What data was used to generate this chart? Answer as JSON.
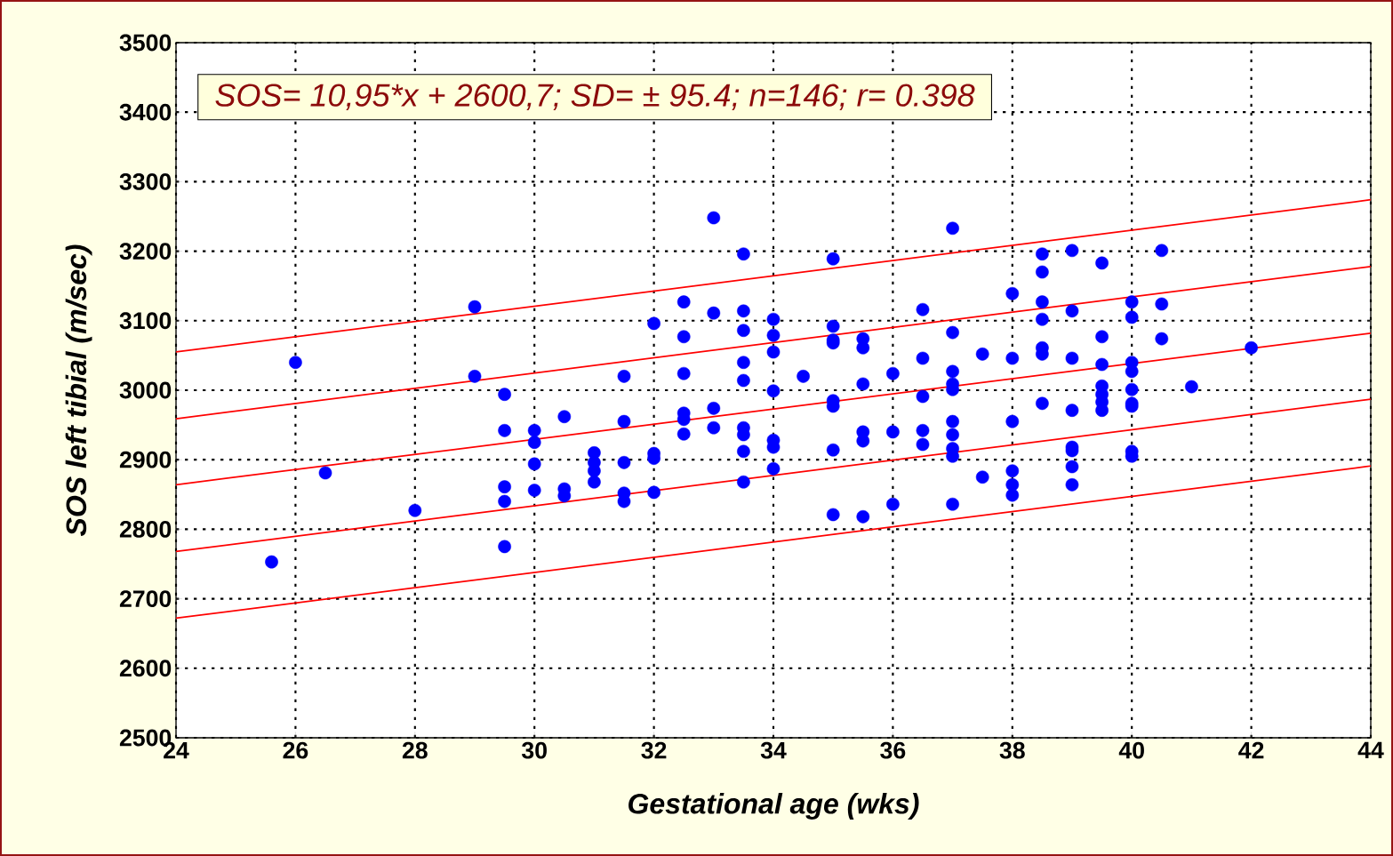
{
  "chart_data": {
    "type": "scatter",
    "xlabel": "Gestational age (wks)",
    "ylabel": "SOS left tibial (m/sec)",
    "annotations": [
      "SOS= 10,95*x + 2600,7; SD= ± 95.4; n=146; r= 0.398"
    ],
    "xlim": [
      24,
      44
    ],
    "ylim": [
      2500,
      3500
    ],
    "xticks": [
      24,
      26,
      28,
      30,
      32,
      34,
      36,
      38,
      40,
      42,
      44
    ],
    "yticks": [
      2500,
      2600,
      2700,
      2800,
      2900,
      3000,
      3100,
      3200,
      3300,
      3400,
      3500
    ],
    "grid": true,
    "series": [
      {
        "color": "#0000ff",
        "x": [
          25.6,
          26,
          26.5,
          28,
          29,
          29,
          29.5,
          29.5,
          29.5,
          29.5,
          29.5,
          30,
          30,
          30,
          30,
          30.5,
          30.5,
          30.5,
          31,
          31,
          31,
          31,
          31.5,
          31.5,
          31.5,
          31.5,
          31.5,
          32,
          32,
          32,
          32,
          32.5,
          32.5,
          32.5,
          32.5,
          32.5,
          32.5,
          33,
          33,
          33,
          33,
          33.5,
          33.5,
          33.5,
          33.5,
          33.5,
          33.5,
          33.5,
          33.5,
          33.5,
          34,
          34,
          34,
          34,
          34,
          34,
          34,
          34.5,
          35,
          35,
          35,
          35,
          35,
          35,
          35,
          35,
          35.5,
          35.5,
          35.5,
          35.5,
          35.5,
          35.5,
          36,
          36,
          36,
          36.5,
          36.5,
          36.5,
          36.5,
          36.5,
          37,
          37,
          37,
          37,
          37,
          37,
          37,
          37,
          37,
          37,
          37.5,
          37.5,
          38,
          38,
          38,
          38,
          38,
          38,
          38.5,
          38.5,
          38.5,
          38.5,
          38.5,
          38.5,
          38.5,
          39,
          39,
          39,
          39,
          39,
          39,
          39,
          39,
          39.5,
          39.5,
          39.5,
          39.5,
          39.5,
          39.5,
          39.5,
          40,
          40,
          40,
          40,
          40,
          40,
          40,
          40,
          40,
          40.5,
          40.5,
          40.5,
          41,
          42
        ],
        "values": [
          2753,
          3040,
          2881,
          2827,
          3120,
          3020,
          2994,
          2942,
          2861,
          2840,
          2775,
          2942,
          2925,
          2894,
          2856,
          2962,
          2858,
          2848,
          2910,
          2896,
          2884,
          2868,
          3020,
          2955,
          2896,
          2852,
          2840,
          3096,
          2909,
          2902,
          2853,
          3127,
          3077,
          3024,
          2967,
          2958,
          2937,
          3248,
          3111,
          2974,
          2946,
          3196,
          3114,
          3086,
          3040,
          3014,
          2946,
          2936,
          2912,
          2868,
          3102,
          3079,
          3055,
          2999,
          2928,
          2918,
          2887,
          3020,
          3189,
          3092,
          3072,
          3068,
          2985,
          2977,
          2914,
          2821,
          3074,
          3061,
          3009,
          2940,
          2927,
          2818,
          3024,
          2940,
          2836,
          3116,
          3046,
          2991,
          2942,
          2922,
          3233,
          3083,
          3027,
          3009,
          3001,
          2955,
          2936,
          2916,
          2905,
          2836,
          3052,
          2875,
          3139,
          3046,
          2955,
          2884,
          2864,
          2849,
          3196,
          3170,
          3127,
          3102,
          3061,
          3052,
          2981,
          3201,
          3114,
          3046,
          2971,
          2918,
          2913,
          2890,
          2864,
          3183,
          3077,
          3037,
          3006,
          2994,
          2983,
          2971,
          3127,
          3105,
          3040,
          3027,
          3001,
          2981,
          2977,
          2912,
          2905,
          3201,
          3124,
          3074,
          3005,
          3061
        ]
      },
      {
        "type": "line",
        "color": "#ff0000",
        "x": [
          24,
          44
        ],
        "values": [
          2864,
          3082
        ],
        "marker": "none"
      },
      {
        "type": "line",
        "color": "#ff0000",
        "x": [
          24,
          44
        ],
        "values": [
          2959,
          3178
        ],
        "marker": "none"
      },
      {
        "type": "line",
        "color": "#ff0000",
        "x": [
          24,
          44
        ],
        "values": [
          3055,
          3274
        ],
        "marker": "none"
      },
      {
        "type": "line",
        "color": "#ff0000",
        "x": [
          24,
          44
        ],
        "values": [
          2768,
          2987
        ],
        "marker": "none"
      },
      {
        "type": "line",
        "color": "#ff0000",
        "x": [
          24,
          44
        ],
        "values": [
          2672,
          2891
        ],
        "marker": "none"
      }
    ]
  }
}
